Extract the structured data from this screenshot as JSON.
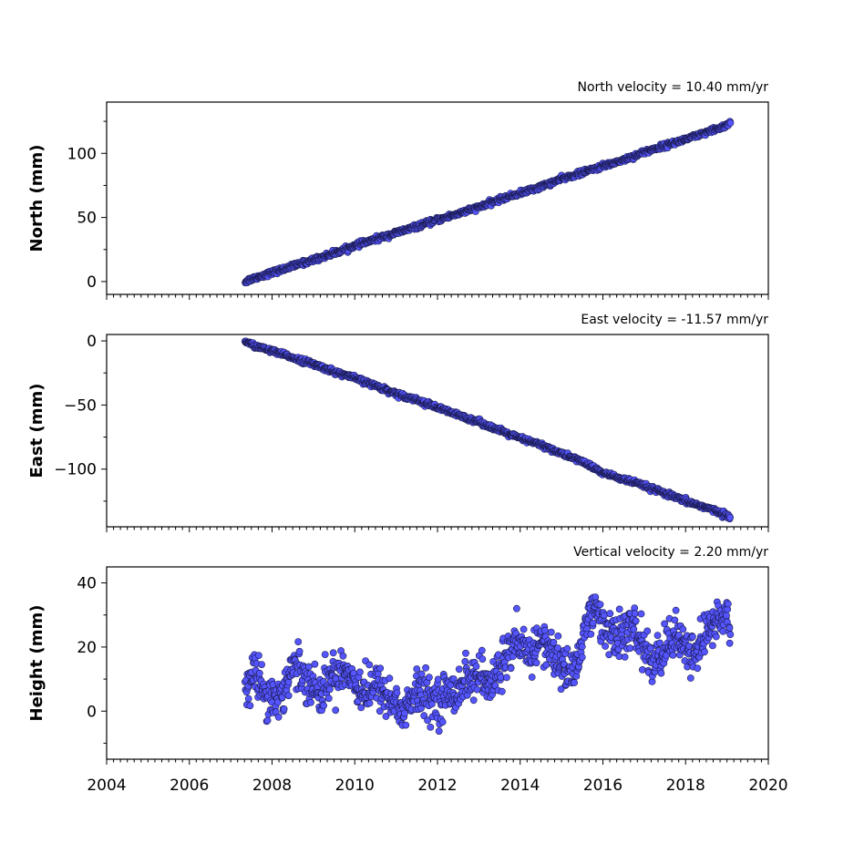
{
  "chart_data": [
    {
      "type": "scatter",
      "title": "North velocity = 10.40 mm/yr",
      "xlabel": "",
      "ylabel": "North (mm)",
      "xlim": [
        2004,
        2020
      ],
      "ylim": [
        -10,
        140
      ],
      "yticks": [
        0,
        50,
        100
      ],
      "ytick_labels": [
        "0",
        "50",
        "100"
      ],
      "x_tick_labels_visible": false,
      "marker_color": "#5555ff",
      "marker_edge": "#1a1a4d",
      "series": [
        {
          "x": [
            2007.35,
            2007.5,
            2008.0,
            2008.5,
            2009.0,
            2009.5,
            2010.0,
            2010.5,
            2011.0,
            2011.5,
            2012.0,
            2012.5,
            2013.0,
            2013.5,
            2014.0,
            2014.5,
            2015.0,
            2015.5,
            2016.0,
            2016.5,
            2017.0,
            2017.5,
            2018.0,
            2018.5,
            2019.0,
            2019.08
          ],
          "y": [
            0,
            2,
            7,
            12,
            17,
            22,
            28,
            33,
            38,
            43,
            48,
            53,
            58,
            64,
            69,
            74,
            80,
            85,
            90,
            95,
            101,
            106,
            111,
            116,
            122,
            124
          ]
        }
      ]
    },
    {
      "type": "scatter",
      "title": "East velocity = -11.57 mm/yr",
      "xlabel": "",
      "ylabel": "East (mm)",
      "xlim": [
        2004,
        2020
      ],
      "ylim": [
        -145,
        5
      ],
      "yticks": [
        0,
        -50,
        -100
      ],
      "ytick_labels": [
        "0",
        "−50",
        "−100"
      ],
      "x_tick_labels_visible": false,
      "marker_color": "#5555ff",
      "marker_edge": "#1a1a4d",
      "series": [
        {
          "x": [
            2007.35,
            2007.5,
            2008.0,
            2008.5,
            2009.0,
            2009.5,
            2010.0,
            2010.5,
            2011.0,
            2011.5,
            2012.0,
            2012.5,
            2013.0,
            2013.5,
            2014.0,
            2014.5,
            2015.0,
            2015.5,
            2016.0,
            2016.5,
            2017.0,
            2017.5,
            2018.0,
            2018.5,
            2019.0,
            2019.08
          ],
          "y": [
            0,
            -3,
            -8,
            -13,
            -18,
            -24,
            -29,
            -35,
            -41,
            -46,
            -52,
            -58,
            -63,
            -70,
            -76,
            -81,
            -88,
            -94,
            -103,
            -108,
            -113,
            -119,
            -125,
            -130,
            -136,
            -139
          ]
        }
      ]
    },
    {
      "type": "scatter",
      "title": "Vertical velocity = 2.20 mm/yr",
      "xlabel": "",
      "ylabel": "Height (mm)",
      "xlim": [
        2004,
        2020
      ],
      "ylim": [
        -15,
        45
      ],
      "yticks": [
        0,
        20,
        40
      ],
      "ytick_labels": [
        "0",
        "20",
        "40"
      ],
      "xticks": [
        2004,
        2006,
        2008,
        2010,
        2012,
        2014,
        2016,
        2018,
        2020
      ],
      "xtick_labels": [
        "2004",
        "2006",
        "2008",
        "2010",
        "2012",
        "2014",
        "2016",
        "2018",
        "2020"
      ],
      "x_tick_labels_visible": true,
      "marker_color": "#5555ff",
      "marker_edge": "#1a1a4d",
      "series": [
        {
          "x": [
            2007.35,
            2007.6,
            2007.9,
            2008.2,
            2008.5,
            2008.8,
            2009.1,
            2009.4,
            2009.7,
            2010.0,
            2010.3,
            2010.6,
            2010.9,
            2011.2,
            2011.5,
            2011.8,
            2012.1,
            2012.4,
            2012.7,
            2013.0,
            2013.3,
            2013.6,
            2013.9,
            2014.2,
            2014.5,
            2014.8,
            2015.1,
            2015.4,
            2015.7,
            2016.0,
            2016.3,
            2016.6,
            2016.9,
            2017.2,
            2017.5,
            2017.8,
            2018.1,
            2018.4,
            2018.7,
            2019.0,
            2019.08
          ],
          "y": [
            8,
            12,
            5,
            4,
            14,
            12,
            5,
            10,
            14,
            9,
            6,
            8,
            3,
            0,
            6,
            4,
            4,
            6,
            10,
            11,
            7,
            17,
            20,
            18,
            22,
            18,
            12,
            16,
            32,
            28,
            22,
            26,
            23,
            14,
            20,
            24,
            16,
            22,
            28,
            30,
            22
          ]
        }
      ]
    }
  ]
}
